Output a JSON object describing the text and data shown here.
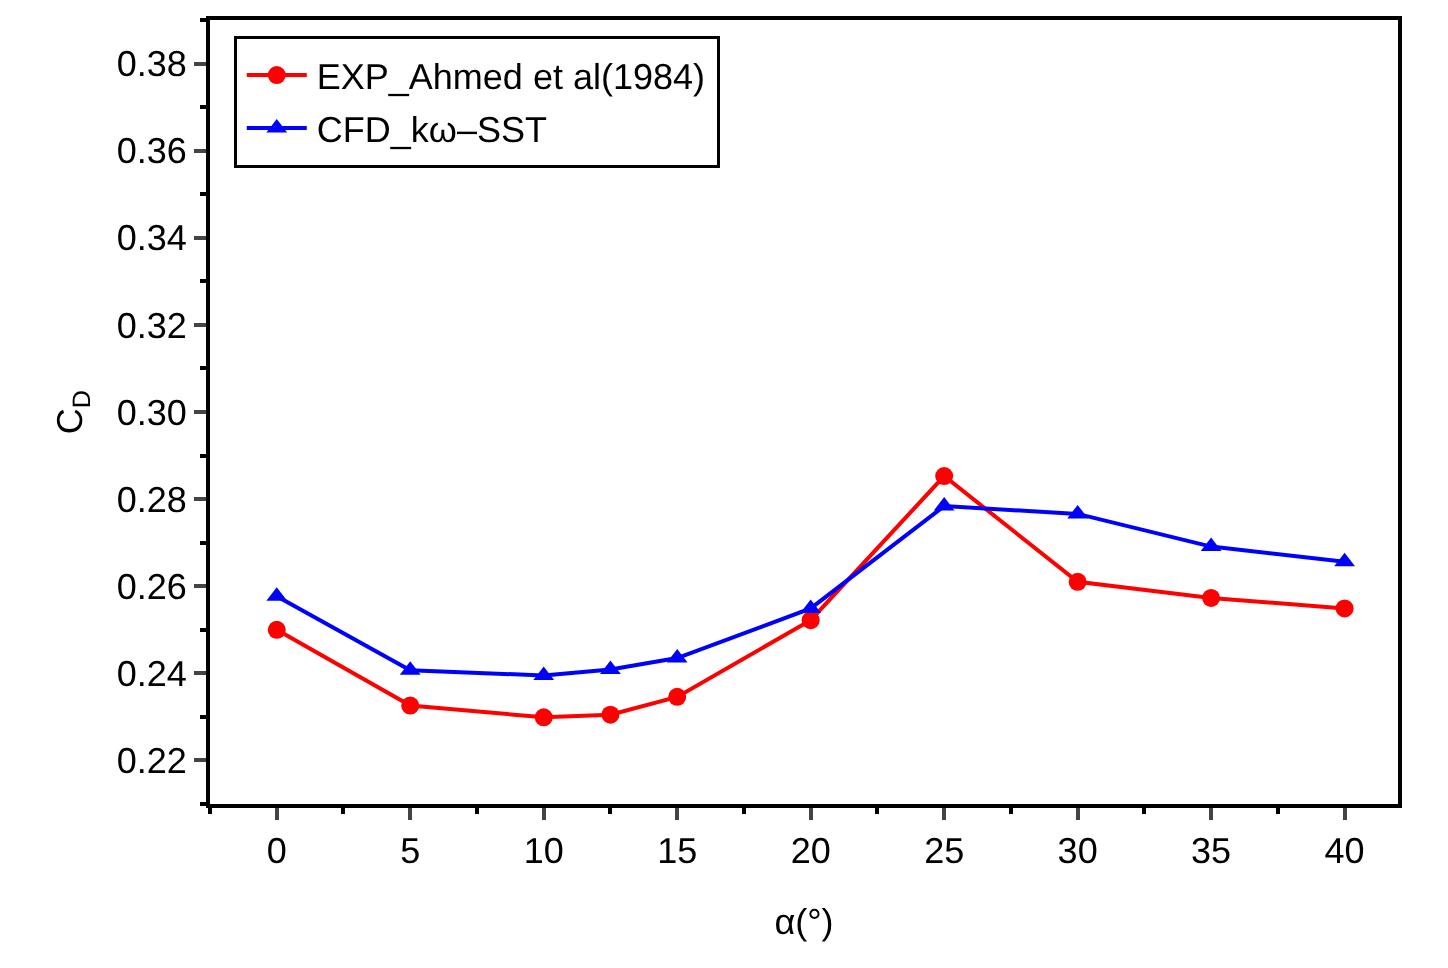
{
  "chart_data": {
    "type": "line",
    "xlabel": "α(°)",
    "ylabel": "C$_{D}$",
    "x": [
      0,
      5,
      10,
      12.5,
      15,
      20,
      25,
      30,
      35,
      40
    ],
    "series": [
      {
        "name": "EXP_Ahmed et al(1984)",
        "color": "#ff0000",
        "marker": "circle",
        "values": [
          0.25,
          0.2326,
          0.2299,
          0.2305,
          0.2346,
          0.2522,
          0.2853,
          0.261,
          0.2573,
          0.2549
        ]
      },
      {
        "name": "CFD_kω–SST",
        "color": "#0000ff",
        "marker": "triangle",
        "values": [
          0.2577,
          0.2407,
          0.2395,
          0.2409,
          0.2435,
          0.2549,
          0.2784,
          0.2766,
          0.2691,
          0.2656
        ]
      }
    ],
    "xlim": [
      -2.5,
      42
    ],
    "xticks": [
      0,
      5,
      10,
      15,
      20,
      25,
      30,
      35,
      40
    ],
    "ylim": [
      0.21,
      0.39
    ],
    "yticks": [
      {
        "value": 0.22,
        "label": "0.22"
      },
      {
        "value": 0.24,
        "label": "0.24"
      },
      {
        "value": 0.26,
        "label": "0.26"
      },
      {
        "value": 0.28,
        "label": "0.28"
      },
      {
        "value": 0.3,
        "label": "0.30"
      },
      {
        "value": 0.32,
        "label": "0.32"
      },
      {
        "value": 0.34,
        "label": "0.34"
      },
      {
        "value": 0.36,
        "label": "0.36"
      },
      {
        "value": 0.38,
        "label": "0.38"
      }
    ],
    "grid": false,
    "legend": "top left",
    "line_style": "solid"
  }
}
